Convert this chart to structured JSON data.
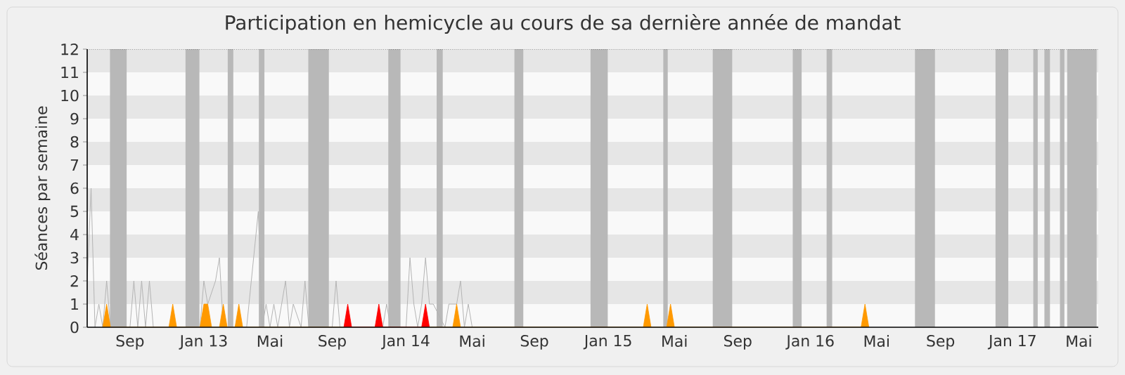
{
  "chart_data": {
    "type": "line",
    "title": "Participation en hemicycle au cours de sa dernière année de mandat",
    "ylabel": "Séances par semaine",
    "xlim": [
      "2012-06-18",
      "2017-06-12"
    ],
    "xticks": [
      {
        "value": "2012-09-03",
        "label": "Sep"
      },
      {
        "value": "2013-01-14",
        "label": "Jan 13"
      },
      {
        "value": "2013-05-13",
        "label": "Mai"
      },
      {
        "value": "2013-09-02",
        "label": "Sep"
      },
      {
        "value": "2014-01-13",
        "label": "Jan 14"
      },
      {
        "value": "2014-05-12",
        "label": "Mai"
      },
      {
        "value": "2014-09-01",
        "label": "Sep"
      },
      {
        "value": "2015-01-12",
        "label": "Jan 15"
      },
      {
        "value": "2015-05-11",
        "label": "Mai"
      },
      {
        "value": "2015-09-02",
        "label": "Sep"
      },
      {
        "value": "2016-01-11",
        "label": "Jan 16"
      },
      {
        "value": "2016-05-09",
        "label": "Mai"
      },
      {
        "value": "2016-09-01",
        "label": "Sep"
      },
      {
        "value": "2017-01-09",
        "label": "Jan 17"
      },
      {
        "value": "2017-05-08",
        "label": "Mai"
      }
    ],
    "ylim": [
      0,
      12
    ],
    "yticks": [
      0,
      1,
      2,
      3,
      4,
      5,
      6,
      7,
      8,
      9,
      10,
      11,
      12
    ],
    "bands": [
      {
        "axis": "y",
        "from": 1,
        "to": 2,
        "color": "#e6e6e6"
      },
      {
        "axis": "y",
        "from": 3,
        "to": 4,
        "color": "#e6e6e6"
      },
      {
        "axis": "y",
        "from": 5,
        "to": 6,
        "color": "#e6e6e6"
      },
      {
        "axis": "y",
        "from": 7,
        "to": 8,
        "color": "#e6e6e6"
      },
      {
        "axis": "y",
        "from": 9,
        "to": 10,
        "color": "#e6e6e6"
      },
      {
        "axis": "y",
        "from": 11,
        "to": 12,
        "color": "#e6e6e6"
      },
      {
        "axis": "x",
        "from": "2012-07-29",
        "to": "2012-08-28",
        "color": "#b8b8b8"
      },
      {
        "axis": "x",
        "from": "2012-12-12",
        "to": "2013-01-06",
        "color": "#b8b8b8"
      },
      {
        "axis": "x",
        "from": "2013-02-26",
        "to": "2013-03-08",
        "color": "#b8b8b8"
      },
      {
        "axis": "x",
        "from": "2013-04-23",
        "to": "2013-05-03",
        "color": "#b8b8b8"
      },
      {
        "axis": "x",
        "from": "2013-07-21",
        "to": "2013-08-27",
        "color": "#b8b8b8"
      },
      {
        "axis": "x",
        "from": "2013-12-12",
        "to": "2014-01-03",
        "color": "#b8b8b8"
      },
      {
        "axis": "x",
        "from": "2014-03-09",
        "to": "2014-03-20",
        "color": "#b8b8b8"
      },
      {
        "axis": "x",
        "from": "2014-07-27",
        "to": "2014-08-12",
        "color": "#b8b8b8"
      },
      {
        "axis": "x",
        "from": "2014-12-11",
        "to": "2015-01-11",
        "color": "#b8b8b8"
      },
      {
        "axis": "x",
        "from": "2015-04-21",
        "to": "2015-04-29",
        "color": "#b8b8b8"
      },
      {
        "axis": "x",
        "from": "2015-07-19",
        "to": "2015-08-23",
        "color": "#b8b8b8"
      },
      {
        "axis": "x",
        "from": "2015-12-10",
        "to": "2015-12-26",
        "color": "#b8b8b8"
      },
      {
        "axis": "x",
        "from": "2016-02-09",
        "to": "2016-02-19",
        "color": "#b8b8b8"
      },
      {
        "axis": "x",
        "from": "2016-07-17",
        "to": "2016-08-22",
        "color": "#b8b8b8"
      },
      {
        "axis": "x",
        "from": "2016-12-09",
        "to": "2017-01-01",
        "color": "#b8b8b8"
      },
      {
        "axis": "x",
        "from": "2017-02-15",
        "to": "2017-02-23",
        "color": "#b8b8b8"
      },
      {
        "axis": "x",
        "from": "2017-03-07",
        "to": "2017-03-17",
        "color": "#b8b8b8"
      },
      {
        "axis": "x",
        "from": "2017-04-04",
        "to": "2017-04-12",
        "color": "#b8b8b8"
      },
      {
        "axis": "x",
        "from": "2017-04-17",
        "to": "2017-06-09",
        "color": "#b8b8b8"
      }
    ],
    "series": [
      {
        "color": "#b4b4b4",
        "x": [
          "2012-06-18",
          "2012-06-25",
          "2012-07-02",
          "2012-07-09",
          "2012-07-16",
          "2012-07-23",
          "2012-07-30",
          "2012-09-03",
          "2012-09-10",
          "2012-09-17",
          "2012-09-24",
          "2012-10-01",
          "2012-10-08",
          "2012-10-15",
          "2013-01-07",
          "2013-01-14",
          "2013-01-21",
          "2013-02-04",
          "2013-02-11",
          "2013-02-18",
          "2013-04-01",
          "2013-04-22",
          "2013-04-29",
          "2013-05-06",
          "2013-05-13",
          "2013-05-20",
          "2013-05-27",
          "2013-06-10",
          "2013-06-17",
          "2013-06-24",
          "2013-07-08",
          "2013-07-15",
          "2013-07-22",
          "2013-09-02",
          "2013-09-09",
          "2013-09-16",
          "2013-12-02",
          "2013-12-09",
          "2013-12-16",
          "2014-01-13",
          "2014-01-20",
          "2014-01-27",
          "2014-02-03",
          "2014-02-10",
          "2014-02-17",
          "2014-02-24",
          "2014-03-03",
          "2014-03-24",
          "2014-03-31",
          "2014-04-07",
          "2014-04-14",
          "2014-04-21",
          "2014-04-28",
          "2014-05-05",
          "2014-05-12"
        ],
        "values": [
          2,
          6,
          0,
          1,
          0,
          2,
          0,
          0,
          2,
          0,
          2,
          0,
          2,
          0,
          0,
          2,
          1,
          2,
          3,
          0,
          0,
          5,
          0,
          1,
          0,
          1,
          0,
          2,
          0,
          1,
          0,
          2,
          0,
          0,
          2,
          0,
          0,
          1,
          0,
          0,
          3,
          1,
          0,
          1,
          3,
          1,
          1,
          0,
          1,
          1,
          1,
          2,
          0,
          1,
          0
        ]
      },
      {
        "type": "area",
        "color": "#ff9900",
        "x": [
          "2012-07-16",
          "2012-07-23",
          "2012-07-30",
          "2012-11-12",
          "2012-11-19",
          "2012-11-26",
          "2013-01-07",
          "2013-01-14",
          "2013-01-21",
          "2013-01-28",
          "2013-02-11",
          "2013-02-18",
          "2013-02-25",
          "2013-03-11",
          "2013-03-18",
          "2013-03-25",
          "2014-04-07",
          "2014-04-14",
          "2014-04-21",
          "2015-03-16",
          "2015-03-23",
          "2015-03-30",
          "2015-04-27",
          "2015-05-04",
          "2015-05-11",
          "2016-04-11",
          "2016-04-18",
          "2016-04-25"
        ],
        "values": [
          0,
          1,
          0,
          0,
          1,
          0,
          0,
          1,
          1,
          0,
          0,
          1,
          0,
          0,
          1,
          0,
          0,
          1,
          0,
          0,
          1,
          0,
          0,
          1,
          0,
          0,
          1,
          0
        ]
      },
      {
        "type": "area",
        "color": "#ff0000",
        "x": [
          "2013-09-23",
          "2013-09-30",
          "2013-10-07",
          "2013-11-18",
          "2013-11-25",
          "2013-12-02",
          "2014-02-10",
          "2014-02-17",
          "2014-02-24"
        ],
        "values": [
          0,
          1,
          0,
          0,
          1,
          0,
          0,
          1,
          0
        ]
      }
    ]
  }
}
